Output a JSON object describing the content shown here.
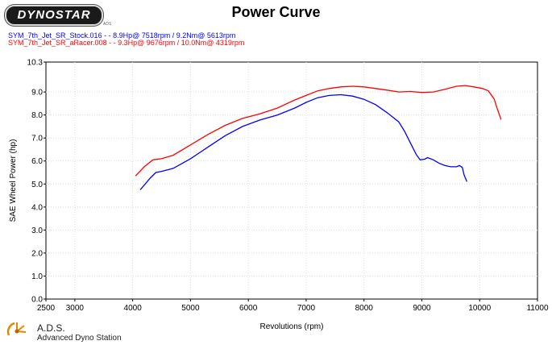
{
  "header": {
    "logo_text": "DYNOSTAR",
    "logo_sub": "ADS",
    "title": "Power Curve"
  },
  "legend": [
    {
      "text": "SYM_7th_Jet_SR_Stock.016 -  - 8.9Hp@ 7518rpm / 9.2Nm@ 5613rpm",
      "color": "#0000ff"
    },
    {
      "text": "SYM_7th_Jet_SR_aRacer.008 -  - 9.3Hp@ 9676rpm / 10.0Nm@ 4319rpm",
      "color": "#ff0000"
    }
  ],
  "footer": {
    "title": "A.D.S.",
    "subtitle": "Advanced Dyno Station"
  },
  "chart_data": {
    "type": "line",
    "xlabel": "Revolutions (rpm)",
    "ylabel": "SAE Wheel Power (hp)",
    "xlim": [
      2500,
      11000
    ],
    "ylim": [
      0.0,
      10.3
    ],
    "x_ticks": [
      "2500",
      "3000",
      "4000",
      "5000",
      "6000",
      "7000",
      "8000",
      "9000",
      "10000",
      "11000"
    ],
    "y_ticks": [
      "0.0",
      "1.0",
      "2.0",
      "3.0",
      "4.0",
      "5.0",
      "6.0",
      "7.0",
      "8.0",
      "9.0",
      "10.3"
    ],
    "x_tick_values": [
      2500,
      3000,
      4000,
      5000,
      6000,
      7000,
      8000,
      9000,
      10000,
      11000
    ],
    "y_tick_values": [
      0,
      1,
      2,
      3,
      4,
      5,
      6,
      7,
      8,
      9,
      10.3
    ],
    "grid": true,
    "series": [
      {
        "name": "SYM_7th_Jet_SR_Stock.016",
        "color": "#0000ff",
        "points": [
          [
            4130,
            4.75
          ],
          [
            4200,
            4.95
          ],
          [
            4300,
            5.25
          ],
          [
            4400,
            5.5
          ],
          [
            4500,
            5.55
          ],
          [
            4700,
            5.68
          ],
          [
            5000,
            6.1
          ],
          [
            5300,
            6.6
          ],
          [
            5600,
            7.1
          ],
          [
            5900,
            7.5
          ],
          [
            6200,
            7.78
          ],
          [
            6500,
            8.0
          ],
          [
            6800,
            8.3
          ],
          [
            7000,
            8.55
          ],
          [
            7200,
            8.75
          ],
          [
            7400,
            8.85
          ],
          [
            7600,
            8.88
          ],
          [
            7800,
            8.82
          ],
          [
            8000,
            8.68
          ],
          [
            8200,
            8.45
          ],
          [
            8400,
            8.1
          ],
          [
            8600,
            7.7
          ],
          [
            8700,
            7.3
          ],
          [
            8800,
            6.8
          ],
          [
            8900,
            6.3
          ],
          [
            8970,
            6.05
          ],
          [
            9050,
            6.08
          ],
          [
            9100,
            6.15
          ],
          [
            9200,
            6.05
          ],
          [
            9300,
            5.9
          ],
          [
            9400,
            5.8
          ],
          [
            9500,
            5.75
          ],
          [
            9600,
            5.75
          ],
          [
            9650,
            5.8
          ],
          [
            9700,
            5.72
          ],
          [
            9730,
            5.4
          ],
          [
            9780,
            5.1
          ]
        ]
      },
      {
        "name": "SYM_7th_Jet_SR_aRacer.008",
        "color": "#ff0000",
        "points": [
          [
            4050,
            5.35
          ],
          [
            4200,
            5.75
          ],
          [
            4350,
            6.05
          ],
          [
            4500,
            6.1
          ],
          [
            4700,
            6.25
          ],
          [
            5000,
            6.7
          ],
          [
            5300,
            7.15
          ],
          [
            5600,
            7.55
          ],
          [
            5900,
            7.85
          ],
          [
            6200,
            8.05
          ],
          [
            6500,
            8.3
          ],
          [
            6800,
            8.65
          ],
          [
            7000,
            8.85
          ],
          [
            7200,
            9.05
          ],
          [
            7400,
            9.15
          ],
          [
            7600,
            9.22
          ],
          [
            7800,
            9.25
          ],
          [
            8000,
            9.22
          ],
          [
            8200,
            9.15
          ],
          [
            8400,
            9.08
          ],
          [
            8600,
            9.0
          ],
          [
            8800,
            9.02
          ],
          [
            9000,
            8.98
          ],
          [
            9200,
            9.0
          ],
          [
            9400,
            9.12
          ],
          [
            9600,
            9.25
          ],
          [
            9750,
            9.28
          ],
          [
            9900,
            9.22
          ],
          [
            10050,
            9.15
          ],
          [
            10150,
            9.05
          ],
          [
            10250,
            8.7
          ],
          [
            10300,
            8.3
          ],
          [
            10370,
            7.8
          ]
        ]
      }
    ]
  }
}
